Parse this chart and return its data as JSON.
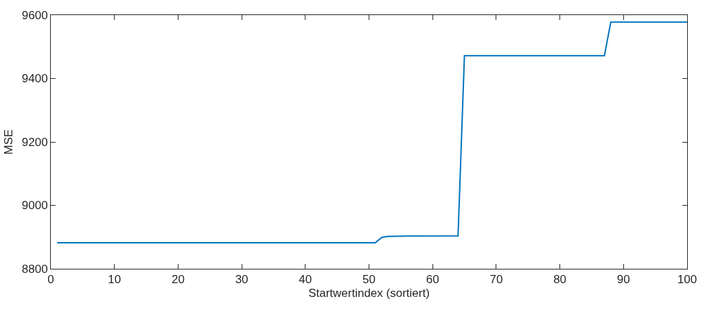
{
  "chart_data": {
    "type": "line",
    "xlabel": "Startwertindex (sortiert)",
    "ylabel": "MSE",
    "x": [
      1,
      51,
      52,
      53,
      56,
      64,
      65,
      87,
      88,
      100
    ],
    "series": [
      {
        "color": "#0072bd",
        "values": [
          8882,
          8882,
          8899,
          8902,
          8903,
          8904,
          9472,
          9472,
          9578,
          9578
        ]
      }
    ],
    "xlim": [
      0,
      100
    ],
    "xticks": [
      0,
      10,
      20,
      30,
      40,
      50,
      60,
      70,
      80,
      90,
      100
    ],
    "ylim": [
      8800,
      9600
    ],
    "yticks": [
      8800,
      9000,
      9200,
      9400,
      9600
    ],
    "marker": "none",
    "line_style": "solid"
  }
}
